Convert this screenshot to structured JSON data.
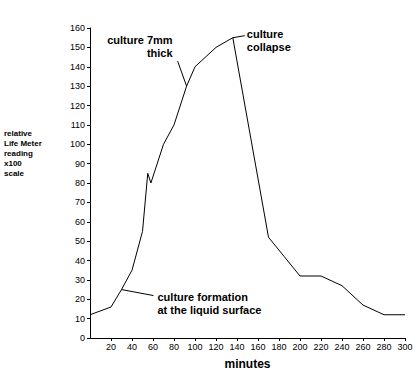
{
  "chart_data": {
    "type": "line",
    "x": [
      0,
      20,
      30,
      40,
      50,
      55,
      58,
      70,
      80,
      92,
      100,
      120,
      136,
      170,
      185,
      200,
      220,
      240,
      260,
      280,
      300
    ],
    "values": [
      12,
      16,
      25,
      35,
      55,
      85,
      80,
      100,
      110,
      130,
      140,
      150,
      155,
      52,
      42,
      32,
      32,
      27,
      17,
      12,
      12
    ],
    "color": "#000000",
    "xlim": [
      0,
      300
    ],
    "xticks": [
      20,
      40,
      60,
      80,
      100,
      120,
      140,
      160,
      180,
      200,
      220,
      240,
      260,
      280,
      300
    ],
    "ylim": [
      0,
      160
    ],
    "yticks": [
      0,
      10,
      20,
      30,
      40,
      50,
      60,
      70,
      80,
      90,
      100,
      110,
      120,
      130,
      140,
      150,
      160
    ],
    "x_label": "minutes",
    "y_label": "relative\nLife Meter\nreading\nx100\nscale",
    "annotations": [
      {
        "text": "culture formation\nat the liquid surface",
        "x": 30,
        "y": 25
      },
      {
        "text": "culture 7mm\nthick",
        "x": 92,
        "y": 130
      },
      {
        "text": "culture\ncollapse",
        "x": 136,
        "y": 155
      }
    ],
    "grid": false
  }
}
